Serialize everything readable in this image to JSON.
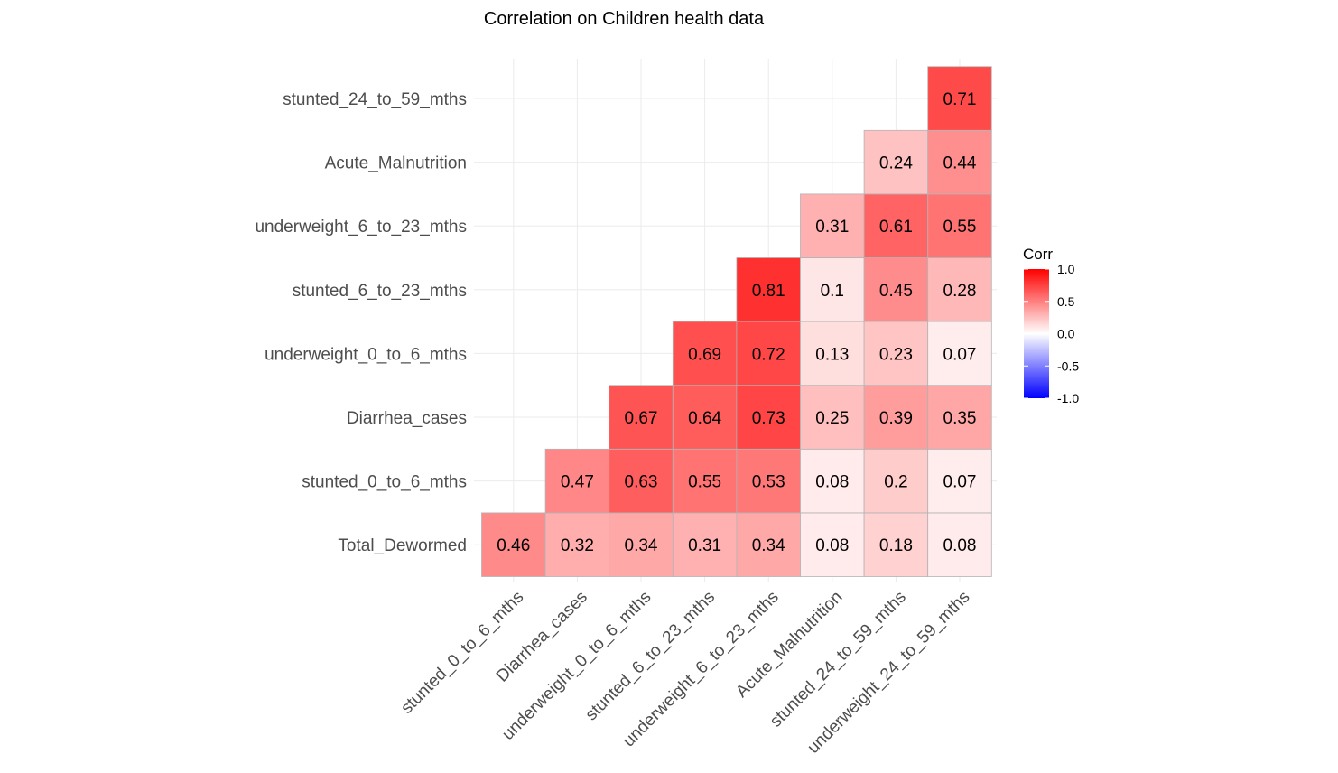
{
  "chart_data": {
    "type": "heatmap",
    "title": "Correlation on Children health data",
    "x_categories": [
      "stunted_0_to_6_mths",
      "Diarrhea_cases",
      "underweight_0_to_6_mths",
      "stunted_6_to_23_mths",
      "underweight_6_to_23_mths",
      "Acute_Malnutrition",
      "stunted_24_to_59_mths",
      "underweight_24_to_59_mths"
    ],
    "y_categories": [
      "Total_Dewormed",
      "stunted_0_to_6_mths",
      "Diarrhea_cases",
      "underweight_0_to_6_mths",
      "stunted_6_to_23_mths",
      "underweight_6_to_23_mths",
      "Acute_Malnutrition",
      "stunted_24_to_59_mths"
    ],
    "values": [
      [
        0.46,
        0.32,
        0.34,
        0.31,
        0.34,
        0.08,
        0.18,
        0.08
      ],
      [
        null,
        0.47,
        0.63,
        0.55,
        0.53,
        0.08,
        0.2,
        0.07
      ],
      [
        null,
        null,
        0.67,
        0.64,
        0.73,
        0.25,
        0.39,
        0.35
      ],
      [
        null,
        null,
        null,
        0.69,
        0.72,
        0.13,
        0.23,
        0.07
      ],
      [
        null,
        null,
        null,
        null,
        0.81,
        0.1,
        0.45,
        0.28
      ],
      [
        null,
        null,
        null,
        null,
        null,
        0.31,
        0.61,
        0.55
      ],
      [
        null,
        null,
        null,
        null,
        null,
        null,
        0.24,
        0.44
      ],
      [
        null,
        null,
        null,
        null,
        null,
        null,
        null,
        0.71
      ]
    ],
    "legend": {
      "title": "Corr",
      "position": "right",
      "ticks": [
        1.0,
        0.5,
        0.0,
        -0.5,
        -1.0
      ],
      "tick_labels": [
        "1.0",
        "0.5",
        "0.0",
        "-0.5",
        "-1.0"
      ],
      "limits": [
        -1,
        1
      ],
      "colors": {
        "low": "#0000ff",
        "mid": "#ffffff",
        "high": "#ff0000"
      }
    },
    "grid": true
  }
}
